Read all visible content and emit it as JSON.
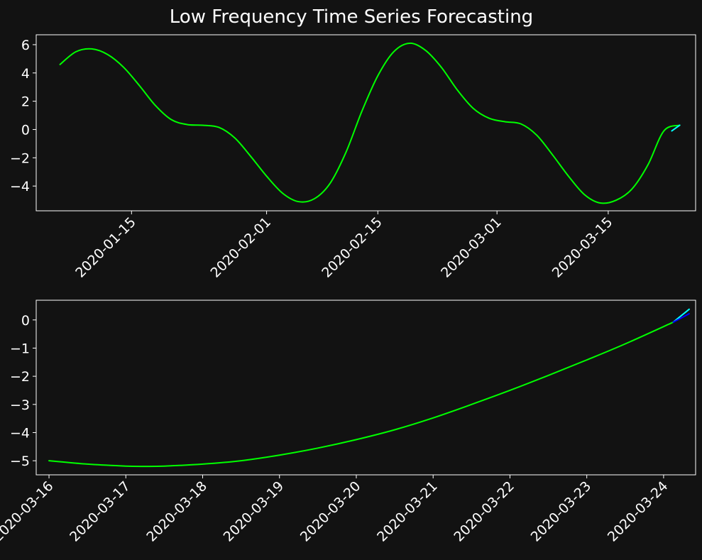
{
  "title": "Low Frequency Time Series Forecasting",
  "colors": {
    "background": "#121212",
    "axes_border": "#ffffff",
    "text": "#ffffff",
    "series_actual": "#00ff00",
    "series_forecast_a": "#00ffff",
    "series_forecast_b": "#0000ff"
  },
  "chart_data": [
    {
      "type": "line",
      "title": "",
      "xlabel": "",
      "ylabel": "",
      "grid": false,
      "x_type": "date",
      "xlim": [
        "2020-01-03",
        "2020-03-26"
      ],
      "ylim": [
        -5.75,
        6.7
      ],
      "x_ticks": [
        "2020-01-15",
        "2020-02-01",
        "2020-02-15",
        "2020-03-01",
        "2020-03-15"
      ],
      "y_ticks": [
        -4,
        -2,
        0,
        2,
        4,
        6
      ],
      "series": [
        {
          "color": "#00ff00",
          "x": [
            "2020-01-06",
            "2020-01-08",
            "2020-01-10",
            "2020-01-12",
            "2020-01-14",
            "2020-01-16",
            "2020-01-18",
            "2020-01-20",
            "2020-01-22",
            "2020-01-24",
            "2020-01-26",
            "2020-01-28",
            "2020-01-30",
            "2020-02-01",
            "2020-02-03",
            "2020-02-05",
            "2020-02-07",
            "2020-02-09",
            "2020-02-11",
            "2020-02-13",
            "2020-02-15",
            "2020-02-17",
            "2020-02-19",
            "2020-02-21",
            "2020-02-23",
            "2020-02-25",
            "2020-02-27",
            "2020-02-29",
            "2020-03-02",
            "2020-03-04",
            "2020-03-06",
            "2020-03-08",
            "2020-03-10",
            "2020-03-12",
            "2020-03-14",
            "2020-03-16",
            "2020-03-18",
            "2020-03-20",
            "2020-03-22",
            "2020-03-24"
          ],
          "values": [
            4.6,
            5.5,
            5.7,
            5.3,
            4.4,
            3.1,
            1.7,
            0.7,
            0.35,
            0.3,
            0.15,
            -0.6,
            -1.9,
            -3.3,
            -4.5,
            -5.1,
            -4.9,
            -3.8,
            -1.6,
            1.3,
            3.8,
            5.5,
            6.1,
            5.6,
            4.4,
            2.8,
            1.5,
            0.8,
            0.55,
            0.4,
            -0.4,
            -1.8,
            -3.3,
            -4.6,
            -5.2,
            -5.0,
            -4.2,
            -2.5,
            -0.1,
            0.3
          ]
        },
        {
          "color": "#00ffff",
          "x": [
            "2020-03-23",
            "2020-03-24"
          ],
          "values": [
            -0.1,
            0.3
          ]
        }
      ]
    },
    {
      "type": "line",
      "title": "",
      "xlabel": "",
      "ylabel": "",
      "grid": false,
      "x_type": "date",
      "xlim": [
        "2020-03-15 20:00",
        "2020-03-24 10:00"
      ],
      "ylim": [
        -5.5,
        0.7
      ],
      "x_ticks": [
        "2020-03-16",
        "2020-03-17",
        "2020-03-18",
        "2020-03-19",
        "2020-03-20",
        "2020-03-21",
        "2020-03-22",
        "2020-03-23",
        "2020-03-24"
      ],
      "y_ticks": [
        -5,
        -4,
        -3,
        -2,
        -1,
        0
      ],
      "series": [
        {
          "color": "#00ff00",
          "x": [
            "2020-03-16 00:00",
            "2020-03-16 12:00",
            "2020-03-17 00:00",
            "2020-03-17 06:00",
            "2020-03-17 12:00",
            "2020-03-18 00:00",
            "2020-03-18 12:00",
            "2020-03-19 00:00",
            "2020-03-19 12:00",
            "2020-03-20 00:00",
            "2020-03-20 12:00",
            "2020-03-21 00:00",
            "2020-03-21 12:00",
            "2020-03-22 00:00",
            "2020-03-22 12:00",
            "2020-03-23 00:00",
            "2020-03-23 12:00",
            "2020-03-24 03:00"
          ],
          "values": [
            -5.0,
            -5.12,
            -5.19,
            -5.2,
            -5.19,
            -5.12,
            -5.0,
            -4.8,
            -4.55,
            -4.25,
            -3.9,
            -3.48,
            -3.0,
            -2.5,
            -1.97,
            -1.42,
            -0.85,
            -0.08
          ]
        },
        {
          "color": "#00ffff",
          "x": [
            "2020-03-24 03:00",
            "2020-03-24 08:00"
          ],
          "values": [
            -0.08,
            0.38
          ]
        },
        {
          "color": "#0000ff",
          "x": [
            "2020-03-24 03:00",
            "2020-03-24 08:00"
          ],
          "values": [
            -0.08,
            0.22
          ]
        }
      ]
    }
  ]
}
